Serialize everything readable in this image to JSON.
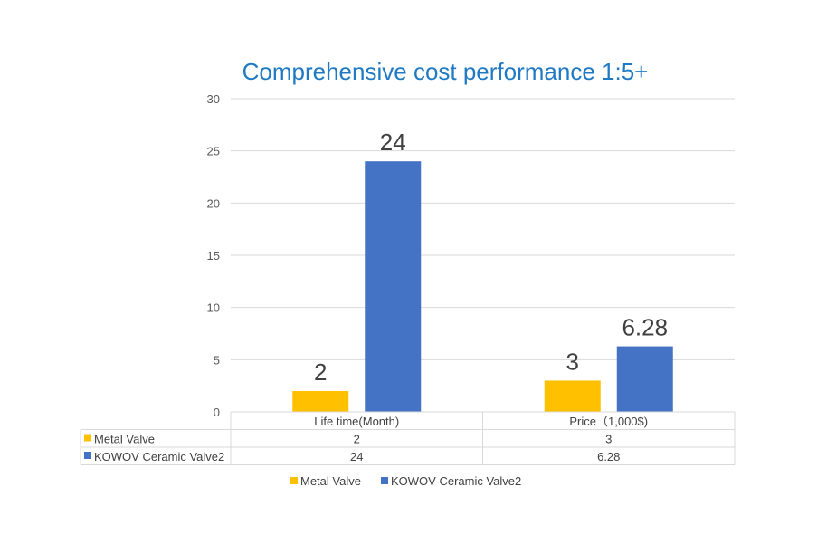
{
  "chart_data": {
    "type": "bar",
    "title": "Comprehensive cost performance 1:5+",
    "categories": [
      "Life time(Month)",
      "Price（1,000$)"
    ],
    "series": [
      {
        "name": "Metal Valve",
        "values": [
          2,
          3
        ],
        "labels": [
          "2",
          "3"
        ],
        "color": "#FFC000"
      },
      {
        "name": "KOWOV Ceramic Valve2",
        "values": [
          24,
          6.28
        ],
        "labels": [
          "24",
          "6.28"
        ],
        "color": "#4472C4"
      }
    ],
    "ylim": [
      0,
      30
    ],
    "yticks": [
      "0",
      "5",
      "10",
      "15",
      "20",
      "25",
      "30"
    ],
    "grid": true,
    "data_table": true,
    "legend_position": "bottom",
    "title_color": "#1F7AC3"
  }
}
